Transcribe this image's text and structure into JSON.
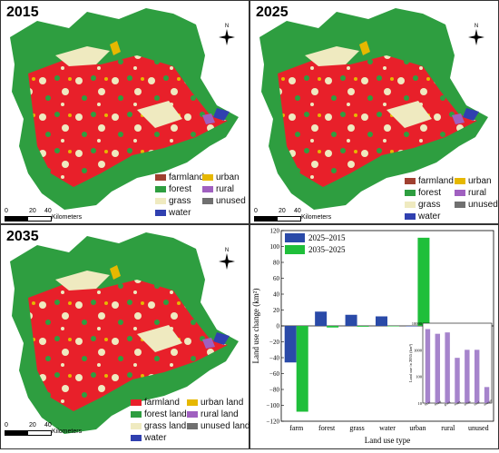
{
  "panels": [
    {
      "year": "2015",
      "legend": [
        "farmland",
        "forest",
        "grass",
        "water",
        "urban",
        "rural",
        "unused"
      ]
    },
    {
      "year": "2025",
      "legend": [
        "farmland",
        "forest",
        "grass",
        "water",
        "urban",
        "rural",
        "unused"
      ]
    },
    {
      "year": "2035",
      "legend": [
        "farmland",
        "forest land",
        "grass land",
        "water",
        "urban land",
        "rural land",
        "unused land"
      ]
    }
  ],
  "scale": {
    "ticks": [
      "0",
      "20",
      "40"
    ],
    "unit": "Kilometers"
  },
  "north_label": "N",
  "colors": {
    "farmland": "#e8202a",
    "forest": "#2e9e40",
    "grass": "#efeac0",
    "water": "#3040b0",
    "urban": "#e6b800",
    "rural": "#a060c0",
    "unused": "#707070",
    "series_2025_2015": "#2a4aa8",
    "series_2035_2025": "#1fbf3a",
    "inset_bar": "#a684cc"
  },
  "chart_data": [
    {
      "type": "bar",
      "categories": [
        "farm",
        "forest",
        "grass",
        "water",
        "urban",
        "rural",
        "unused"
      ],
      "series": [
        {
          "name": "2025–2015",
          "values": [
            -46,
            18,
            14,
            12,
            0,
            1,
            -2
          ]
        },
        {
          "name": "2035–2025",
          "values": [
            -108,
            -2,
            -1,
            0,
            111,
            0,
            0
          ]
        }
      ],
      "xlabel": "Land use type",
      "ylabel": "Land use change (km²)",
      "ylim": [
        -120,
        120
      ],
      "yticks": [
        -120,
        -100,
        -80,
        -60,
        -40,
        -20,
        0,
        20,
        40,
        60,
        80,
        100,
        120
      ],
      "legend": "top-left"
    },
    {
      "type": "bar",
      "categories": [
        "farm",
        "forest",
        "grass",
        "water",
        "urban",
        "rural",
        "unused"
      ],
      "values": [
        6000,
        4000,
        4500,
        500,
        1000,
        1000,
        40
      ],
      "ylabel": "Land use in 2035 (km²)",
      "yscale": "log",
      "yticks": [
        "10000",
        "1000",
        "100",
        "10"
      ]
    }
  ]
}
